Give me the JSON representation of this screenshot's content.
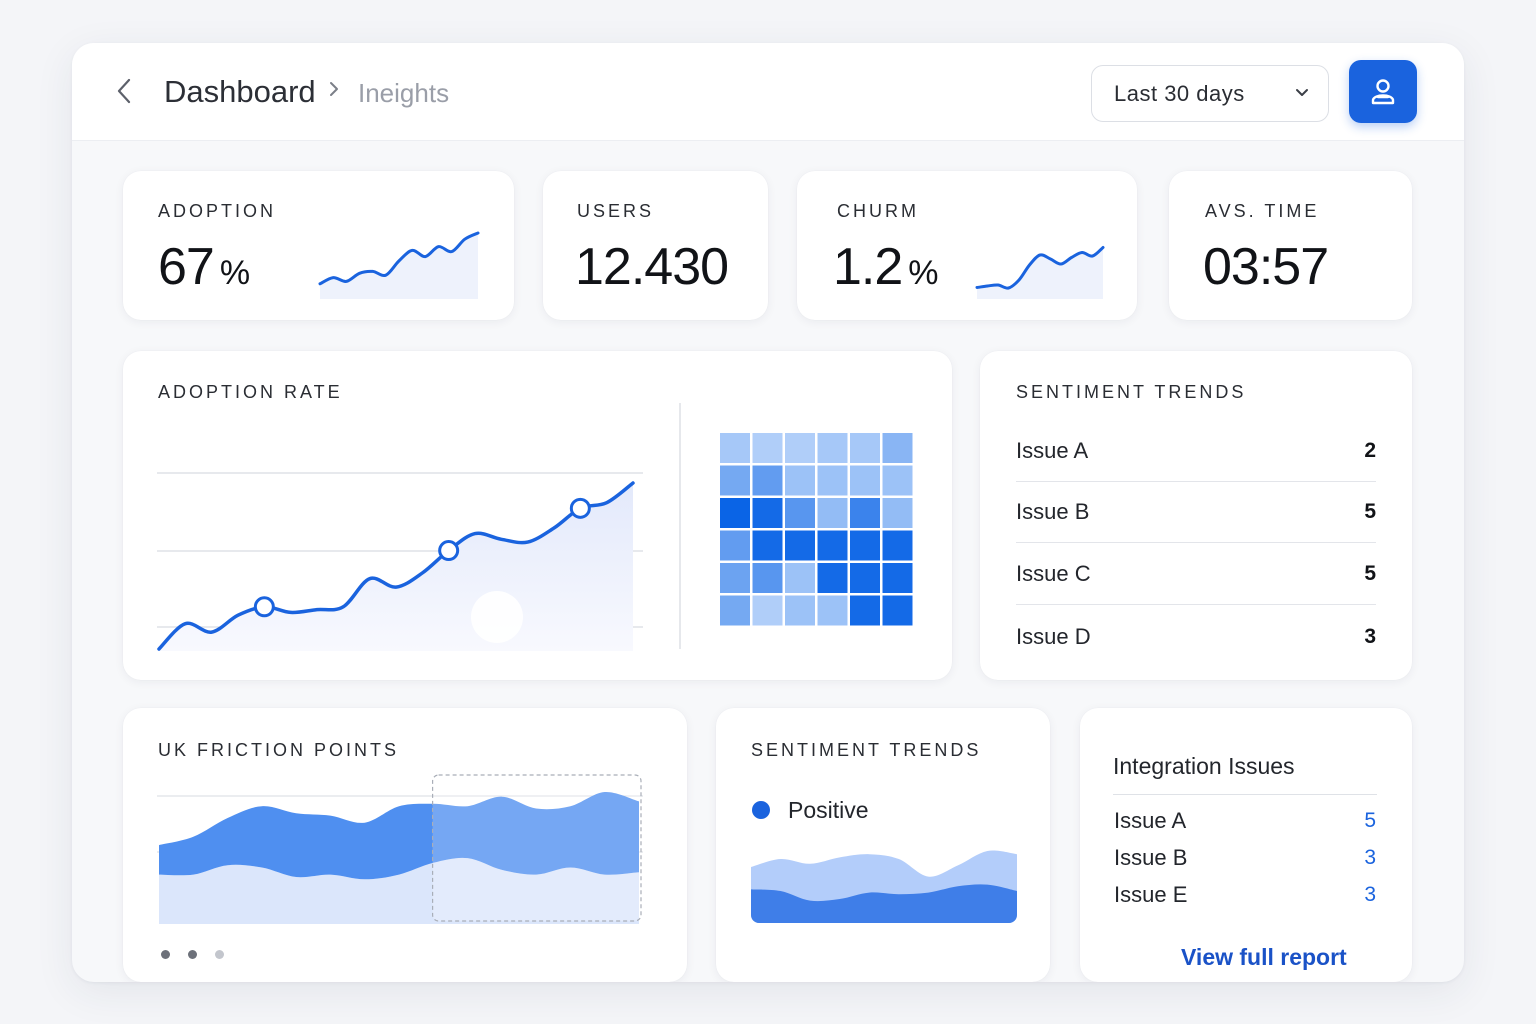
{
  "header": {
    "breadcrumb_title": "Dashboard",
    "breadcrumb_current": "Ineights",
    "range_value": "Last 30 days",
    "icons": {
      "back": "chevron-left-icon",
      "separator": "chevron-right-icon",
      "range": "chevron-down-icon",
      "action": "user-share-icon"
    }
  },
  "kpis": [
    {
      "label": "ADOPTION",
      "value": "67",
      "unit": "%",
      "sparkline": [
        0.18,
        0.28,
        0.22,
        0.35,
        0.38,
        0.32,
        0.55,
        0.72,
        0.62,
        0.78,
        0.7,
        0.9,
        1.0
      ]
    },
    {
      "label": "USERS",
      "value": "12.430",
      "unit": ""
    },
    {
      "label": "CHURM",
      "value": "1.2",
      "unit": "%",
      "sparkline": [
        0.15,
        0.18,
        0.2,
        0.14,
        0.3,
        0.6,
        0.8,
        0.72,
        0.62,
        0.75,
        0.85,
        0.78,
        0.95
      ]
    },
    {
      "label": "AVS. TIME",
      "value": "03:57",
      "unit": ""
    }
  ],
  "adoption_rate": {
    "label": "ADOPTION RATE",
    "chart_data": {
      "type": "line",
      "values": [
        0.0,
        0.18,
        0.12,
        0.24,
        0.3,
        0.26,
        0.28,
        0.3,
        0.5,
        0.44,
        0.54,
        0.7,
        0.82,
        0.78,
        0.76,
        0.86,
        1.0,
        1.04,
        1.18
      ],
      "highlighted_points": [
        4,
        11,
        16
      ],
      "grid": true
    },
    "heatmap": [
      [
        0.2,
        0.15,
        0.15,
        0.2,
        0.2,
        0.35
      ],
      [
        0.45,
        0.55,
        0.25,
        0.25,
        0.25,
        0.25
      ],
      [
        1.0,
        0.95,
        0.6,
        0.3,
        0.75,
        0.3
      ],
      [
        0.55,
        0.95,
        0.95,
        0.95,
        0.95,
        0.95
      ],
      [
        0.5,
        0.6,
        0.25,
        0.95,
        0.95,
        0.95
      ],
      [
        0.45,
        0.15,
        0.25,
        0.25,
        0.95,
        0.95
      ]
    ],
    "accent": "#1a63de"
  },
  "sentiment_list": {
    "label": "SENTIMENT TRENDS",
    "items": [
      {
        "name": "Issue A",
        "count": "2"
      },
      {
        "name": "Issue B",
        "count": "5"
      },
      {
        "name": "Issue C",
        "count": "5"
      },
      {
        "name": "Issue D",
        "count": "3"
      }
    ]
  },
  "friction": {
    "label": "UK FRICTION POINTS",
    "chart_data": {
      "type": "area",
      "upper": [
        0.55,
        0.62,
        0.78,
        0.88,
        0.82,
        0.8,
        0.74,
        0.88,
        0.9,
        0.88,
        0.96,
        0.86,
        0.88,
        1.0,
        0.92
      ],
      "lower": [
        0.3,
        0.3,
        0.38,
        0.36,
        0.28,
        0.3,
        0.26,
        0.3,
        0.4,
        0.44,
        0.34,
        0.3,
        0.36,
        0.3,
        0.32
      ],
      "selected_range": [
        0.57,
        1.0
      ]
    },
    "pages": 3,
    "active_page": 0
  },
  "sentiment_chart": {
    "label": "SENTIMENT TRENDS",
    "legend": "Positive",
    "chart_data": {
      "type": "area",
      "upper": [
        0.7,
        0.8,
        0.74,
        0.82,
        0.86,
        0.8,
        0.58,
        0.72,
        0.9,
        0.86
      ],
      "lower": [
        0.42,
        0.4,
        0.28,
        0.3,
        0.38,
        0.36,
        0.38,
        0.46,
        0.48,
        0.4
      ]
    }
  },
  "integration": {
    "title": "Integration Issues",
    "items": [
      {
        "name": "Issue A",
        "count": "5"
      },
      {
        "name": "Issue B",
        "count": "3"
      },
      {
        "name": "Issue E",
        "count": "3"
      }
    ],
    "link": "View full report"
  }
}
